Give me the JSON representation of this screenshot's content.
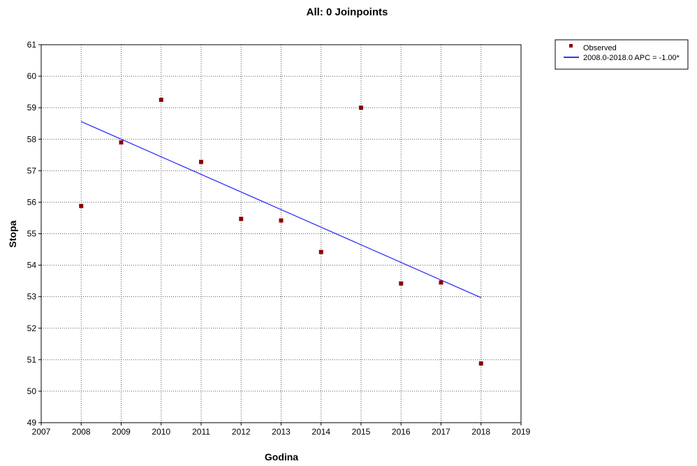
{
  "chart_data": {
    "type": "scatter",
    "title": "All: 0 Joinpoints",
    "xlabel": "Godina",
    "ylabel": "Stopa",
    "xlim": [
      2007,
      2019
    ],
    "ylim": [
      49,
      61
    ],
    "x_ticks": [
      "2007",
      "2008",
      "2009",
      "2010",
      "2011",
      "2012",
      "2013",
      "2014",
      "2015",
      "2016",
      "2017",
      "2018",
      "2019"
    ],
    "y_ticks": [
      "49",
      "50",
      "51",
      "52",
      "53",
      "54",
      "55",
      "56",
      "57",
      "58",
      "59",
      "60",
      "61"
    ],
    "grid": true,
    "legend_position": "top-right (outside plot)",
    "series": [
      {
        "name": "Observed",
        "kind": "points",
        "color": "#8B0000",
        "x": [
          2008,
          2009,
          2010,
          2011,
          2012,
          2013,
          2014,
          2015,
          2016,
          2017,
          2018
        ],
        "y": [
          55.88,
          57.9,
          59.25,
          57.28,
          55.47,
          55.42,
          54.42,
          59.0,
          53.42,
          53.45,
          50.88
        ]
      },
      {
        "name": "2008.0-2018.0 APC  = -1.00*",
        "kind": "line",
        "color": "#3333FF",
        "x": [
          2008,
          2018
        ],
        "y": [
          58.56,
          52.97
        ]
      }
    ]
  }
}
